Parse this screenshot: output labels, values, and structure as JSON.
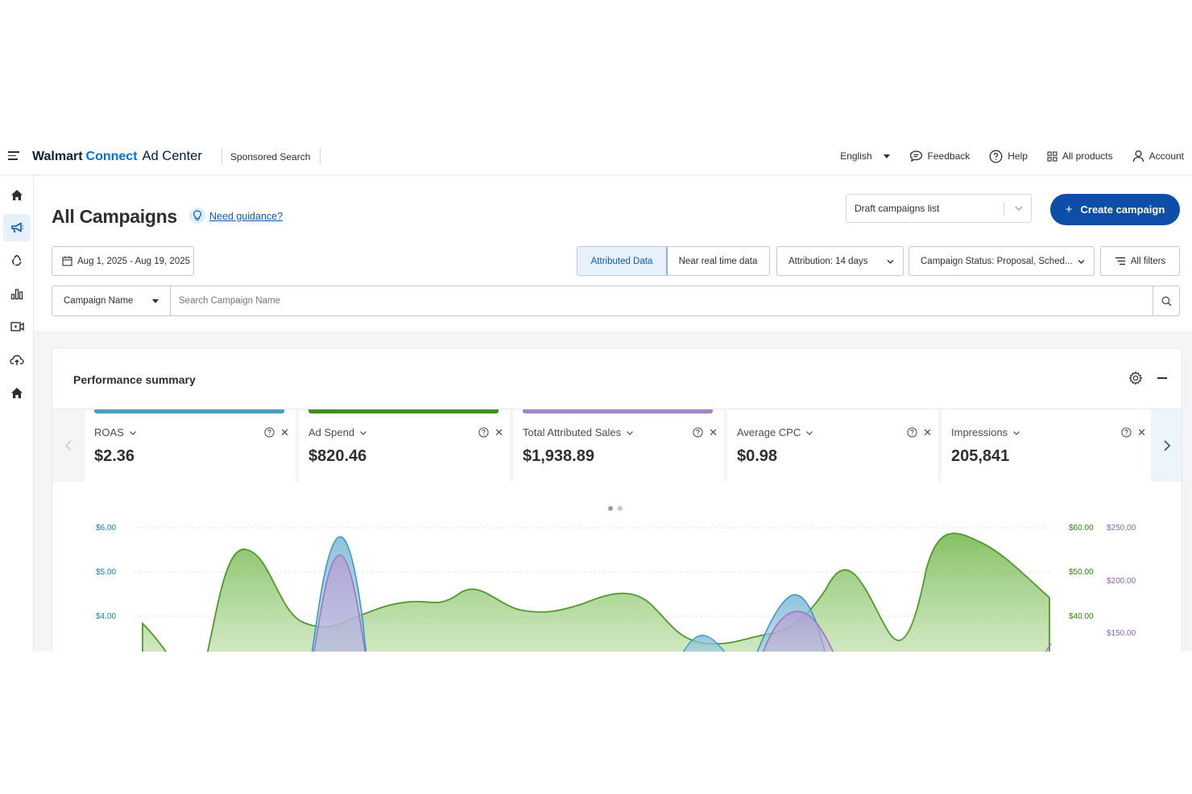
{
  "header": {
    "brand_walmart": "Walmart",
    "brand_connect": "Connect",
    "brand_adcenter": "Ad Center",
    "product": "Sponsored Search",
    "language": "English",
    "feedback": "Feedback",
    "help": "Help",
    "all_products": "All products",
    "account": "Account"
  },
  "sidebar": {
    "items": [
      {
        "icon": "home-icon"
      },
      {
        "icon": "megaphone-icon",
        "active": true
      },
      {
        "icon": "recycle-icon"
      },
      {
        "icon": "bar-chart-icon"
      },
      {
        "icon": "video-icon"
      },
      {
        "icon": "cloud-upload-icon"
      },
      {
        "icon": "home-icon"
      }
    ]
  },
  "page": {
    "title": "All Campaigns",
    "guidance_link": "Need guidance?",
    "draft_select": "Draft campaigns list",
    "create_button": "Create campaign"
  },
  "filters": {
    "date_range": "Aug 1, 2025 - Aug 19, 2025",
    "attributed_data": "Attributed Data",
    "near_real_time": "Near real time data",
    "attribution": "Attribution: 14 days",
    "campaign_status": "Campaign Status: Proposal, Sched...",
    "all_filters": "All filters"
  },
  "search": {
    "type": "Campaign Name",
    "placeholder": "Search Campaign Name"
  },
  "performance": {
    "title": "Performance summary",
    "metrics": [
      {
        "name": "ROAS",
        "value": "$2.36",
        "color": "#4a9fc1"
      },
      {
        "name": "Ad Spend",
        "value": "$820.46",
        "color": "#3f8f1f"
      },
      {
        "name": "Total Attributed Sales",
        "value": "$1,938.89",
        "color": "#a384c4"
      },
      {
        "name": "Average CPC",
        "value": "$0.98",
        "color": "#ffffff"
      },
      {
        "name": "Impressions",
        "value": "205,841",
        "color": "#ffffff"
      }
    ],
    "page_dots": 2,
    "active_dot": 0
  },
  "chart_data": {
    "type": "area",
    "left_axis_ticks": [
      "$6.00",
      "$5.00",
      "$4.00"
    ],
    "right_axis_green_ticks": [
      "$60.00",
      "$50.00",
      "$40.00"
    ],
    "right_axis_purple_ticks": [
      "$250.00",
      "$200.00",
      "$150.00"
    ],
    "colors": {
      "roas": "#4a9fc1",
      "ad_spend": "#5aa532",
      "sales": "#a384c4"
    }
  }
}
